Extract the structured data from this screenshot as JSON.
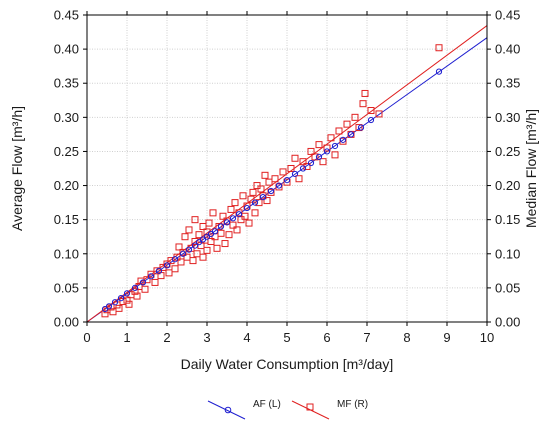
{
  "chart_data": {
    "type": "scatter",
    "xlabel": "Daily Water Consumption [m³/day]",
    "ylabel_left": "Average Flow [m³/h]",
    "ylabel_right": "Median Flow [m³/h]",
    "xlim": [
      0,
      10
    ],
    "ylim": [
      0,
      0.45
    ],
    "x_ticks": [
      "0",
      "1",
      "2",
      "3",
      "4",
      "5",
      "6",
      "7",
      "8",
      "9",
      "10"
    ],
    "y_ticks": [
      "0.00",
      "0.05",
      "0.10",
      "0.15",
      "0.20",
      "0.25",
      "0.30",
      "0.35",
      "0.40",
      "0.45"
    ],
    "grid": true,
    "legend_position": "bottom",
    "series": [
      {
        "name": "AF (L)",
        "marker": "circle",
        "color": "#1f1fd0",
        "axis": "left",
        "fit_line": {
          "slope": 0.04167,
          "intercept": 0.0
        },
        "points": [
          [
            0.45,
            0.019
          ],
          [
            0.55,
            0.023
          ],
          [
            0.7,
            0.029
          ],
          [
            0.85,
            0.035
          ],
          [
            1.0,
            0.042
          ],
          [
            1.2,
            0.05
          ],
          [
            1.4,
            0.058
          ],
          [
            1.6,
            0.067
          ],
          [
            1.8,
            0.075
          ],
          [
            2.0,
            0.083
          ],
          [
            2.2,
            0.092
          ],
          [
            2.4,
            0.1
          ],
          [
            2.55,
            0.106
          ],
          [
            2.7,
            0.112
          ],
          [
            2.8,
            0.117
          ],
          [
            2.9,
            0.121
          ],
          [
            3.0,
            0.125
          ],
          [
            3.1,
            0.129
          ],
          [
            3.2,
            0.133
          ],
          [
            3.35,
            0.14
          ],
          [
            3.5,
            0.146
          ],
          [
            3.65,
            0.152
          ],
          [
            3.8,
            0.158
          ],
          [
            4.0,
            0.167
          ],
          [
            4.2,
            0.175
          ],
          [
            4.4,
            0.183
          ],
          [
            4.6,
            0.192
          ],
          [
            4.8,
            0.2
          ],
          [
            5.0,
            0.208
          ],
          [
            5.2,
            0.217
          ],
          [
            5.4,
            0.225
          ],
          [
            5.6,
            0.233
          ],
          [
            5.8,
            0.242
          ],
          [
            6.0,
            0.25
          ],
          [
            6.2,
            0.258
          ],
          [
            6.4,
            0.267
          ],
          [
            6.6,
            0.275
          ],
          [
            6.85,
            0.285
          ],
          [
            7.1,
            0.296
          ],
          [
            8.8,
            0.367
          ]
        ]
      },
      {
        "name": "MF (R)",
        "marker": "square",
        "color": "#e02020",
        "axis": "right",
        "fit_line": {
          "slope": 0.04345,
          "intercept": 0.0
        },
        "points": [
          [
            0.45,
            0.012
          ],
          [
            0.5,
            0.018
          ],
          [
            0.6,
            0.022
          ],
          [
            0.65,
            0.015
          ],
          [
            0.75,
            0.025
          ],
          [
            0.8,
            0.02
          ],
          [
            0.9,
            0.03
          ],
          [
            1.0,
            0.032
          ],
          [
            1.05,
            0.026
          ],
          [
            1.1,
            0.04
          ],
          [
            1.2,
            0.045
          ],
          [
            1.25,
            0.038
          ],
          [
            1.3,
            0.052
          ],
          [
            1.35,
            0.06
          ],
          [
            1.45,
            0.048
          ],
          [
            1.5,
            0.062
          ],
          [
            1.6,
            0.07
          ],
          [
            1.7,
            0.058
          ],
          [
            1.75,
            0.075
          ],
          [
            1.85,
            0.068
          ],
          [
            1.9,
            0.08
          ],
          [
            2.0,
            0.085
          ],
          [
            2.05,
            0.072
          ],
          [
            2.1,
            0.09
          ],
          [
            2.2,
            0.078
          ],
          [
            2.25,
            0.095
          ],
          [
            2.3,
            0.11
          ],
          [
            2.35,
            0.088
          ],
          [
            2.4,
            0.102
          ],
          [
            2.45,
            0.125
          ],
          [
            2.5,
            0.095
          ],
          [
            2.55,
            0.135
          ],
          [
            2.6,
            0.108
          ],
          [
            2.65,
            0.09
          ],
          [
            2.7,
            0.118
          ],
          [
            2.7,
            0.15
          ],
          [
            2.75,
            0.1
          ],
          [
            2.8,
            0.128
          ],
          [
            2.85,
            0.112
          ],
          [
            2.9,
            0.14
          ],
          [
            2.9,
            0.095
          ],
          [
            2.95,
            0.12
          ],
          [
            3.0,
            0.132
          ],
          [
            3.0,
            0.105
          ],
          [
            3.05,
            0.145
          ],
          [
            3.1,
            0.118
          ],
          [
            3.15,
            0.16
          ],
          [
            3.2,
            0.125
          ],
          [
            3.25,
            0.108
          ],
          [
            3.3,
            0.14
          ],
          [
            3.35,
            0.13
          ],
          [
            3.4,
            0.155
          ],
          [
            3.45,
            0.115
          ],
          [
            3.5,
            0.148
          ],
          [
            3.55,
            0.128
          ],
          [
            3.6,
            0.165
          ],
          [
            3.65,
            0.142
          ],
          [
            3.7,
            0.175
          ],
          [
            3.75,
            0.135
          ],
          [
            3.8,
            0.16
          ],
          [
            3.85,
            0.15
          ],
          [
            3.9,
            0.185
          ],
          [
            3.95,
            0.155
          ],
          [
            4.0,
            0.17
          ],
          [
            4.05,
            0.145
          ],
          [
            4.1,
            0.18
          ],
          [
            4.15,
            0.19
          ],
          [
            4.2,
            0.16
          ],
          [
            4.25,
            0.2
          ],
          [
            4.3,
            0.175
          ],
          [
            4.35,
            0.195
          ],
          [
            4.4,
            0.185
          ],
          [
            4.45,
            0.215
          ],
          [
            4.5,
            0.178
          ],
          [
            4.55,
            0.205
          ],
          [
            4.6,
            0.19
          ],
          [
            4.7,
            0.21
          ],
          [
            4.8,
            0.198
          ],
          [
            4.9,
            0.22
          ],
          [
            5.0,
            0.205
          ],
          [
            5.1,
            0.225
          ],
          [
            5.2,
            0.24
          ],
          [
            5.3,
            0.21
          ],
          [
            5.4,
            0.235
          ],
          [
            5.5,
            0.228
          ],
          [
            5.6,
            0.25
          ],
          [
            5.7,
            0.242
          ],
          [
            5.8,
            0.26
          ],
          [
            5.9,
            0.235
          ],
          [
            6.0,
            0.255
          ],
          [
            6.1,
            0.27
          ],
          [
            6.2,
            0.245
          ],
          [
            6.3,
            0.28
          ],
          [
            6.4,
            0.265
          ],
          [
            6.5,
            0.29
          ],
          [
            6.6,
            0.275
          ],
          [
            6.7,
            0.3
          ],
          [
            6.8,
            0.285
          ],
          [
            6.9,
            0.32
          ],
          [
            6.95,
            0.335
          ],
          [
            7.1,
            0.31
          ],
          [
            7.3,
            0.305
          ],
          [
            8.8,
            0.402
          ]
        ]
      }
    ],
    "legend": [
      {
        "label": "AF (L)",
        "color": "#1f1fd0",
        "marker": "circle"
      },
      {
        "label": "MF (R)",
        "color": "#e02020",
        "marker": "square"
      }
    ]
  }
}
